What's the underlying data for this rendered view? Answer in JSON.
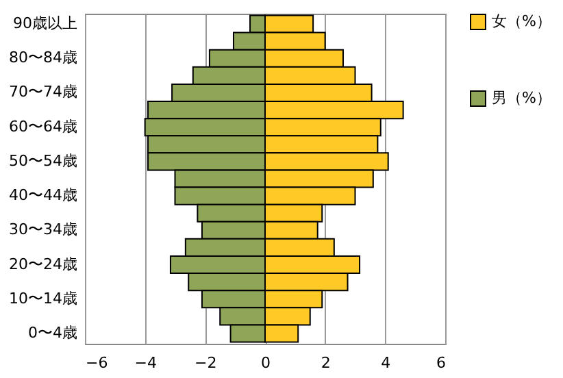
{
  "chart_data": {
    "type": "bar",
    "orientation": "horizontal",
    "categories": [
      "90歳以上",
      null,
      "80〜84歳",
      null,
      "70〜74歳",
      null,
      "60〜64歳",
      null,
      "50〜54歳",
      null,
      "40〜44歳",
      null,
      "30〜34歳",
      null,
      "20〜24歳",
      null,
      "10〜14歳",
      null,
      "0〜4歳"
    ],
    "series": [
      {
        "name": "女（%）",
        "color": "#ffc926",
        "values": [
          1.6,
          2.0,
          2.6,
          3.0,
          3.55,
          4.6,
          3.85,
          3.75,
          4.1,
          3.6,
          3.0,
          1.9,
          1.75,
          2.3,
          3.15,
          2.75,
          1.9,
          1.5,
          1.1
        ]
      },
      {
        "name": "男（%）",
        "color": "#8fa557",
        "values": [
          -0.5,
          -1.05,
          -1.85,
          -2.4,
          -3.1,
          -3.9,
          -4.0,
          -3.9,
          -3.9,
          -3.0,
          -3.0,
          -2.25,
          -2.1,
          -2.65,
          -3.15,
          -2.55,
          -2.1,
          -1.5,
          -1.15
        ]
      }
    ],
    "xlim": [
      -6,
      6
    ],
    "xticks": [
      -6,
      -4,
      -2,
      0,
      2,
      4,
      6
    ],
    "grid": "x",
    "legend": "right",
    "stacked": true
  }
}
